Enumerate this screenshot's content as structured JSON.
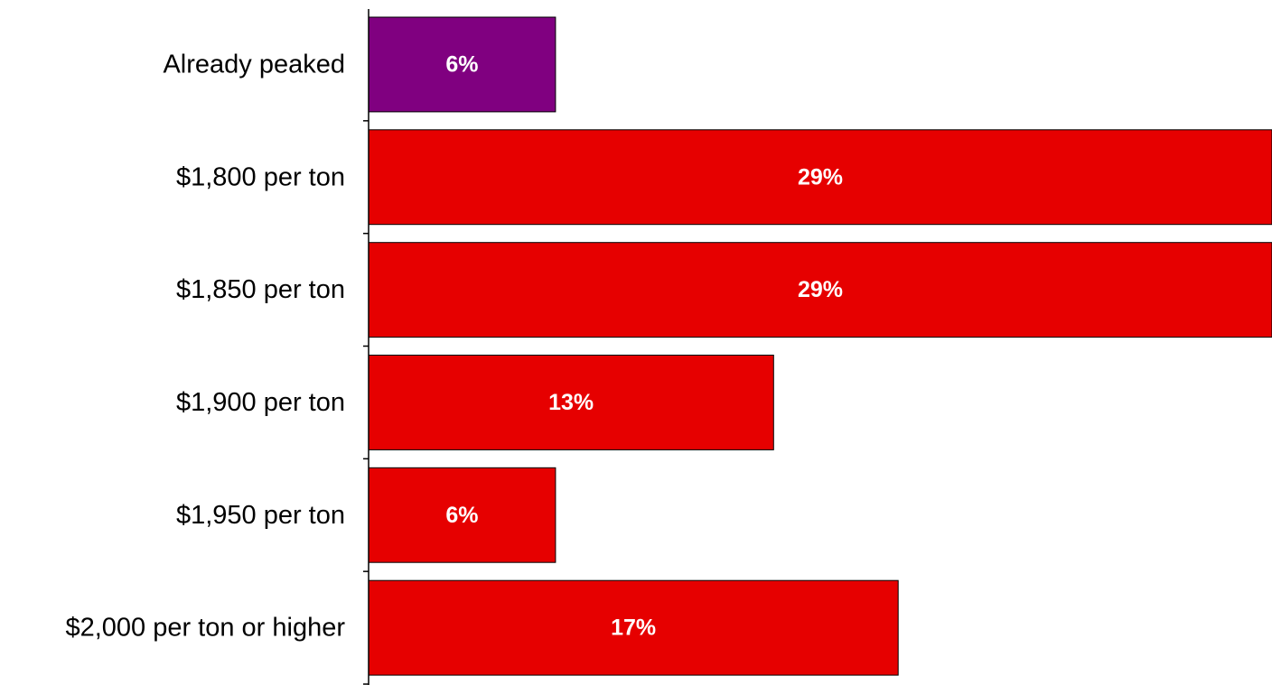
{
  "chart_data": {
    "type": "bar",
    "orientation": "horizontal",
    "title": "",
    "xlabel": "",
    "ylabel": "",
    "categories": [
      "Already peaked",
      "$1,800 per ton",
      "$1,850 per ton",
      "$1,900 per ton",
      "$1,950 per ton",
      "$2,000 per ton or higher"
    ],
    "values": [
      6,
      29,
      29,
      13,
      6,
      17
    ],
    "value_labels": [
      "6%",
      "29%",
      "29%",
      "13%",
      "6%",
      "17%"
    ],
    "bar_colors": [
      "#800080",
      "#e60000",
      "#e60000",
      "#e60000",
      "#e60000",
      "#e60000"
    ],
    "xlim": [
      0,
      29
    ],
    "grid": false,
    "legend": "none"
  }
}
